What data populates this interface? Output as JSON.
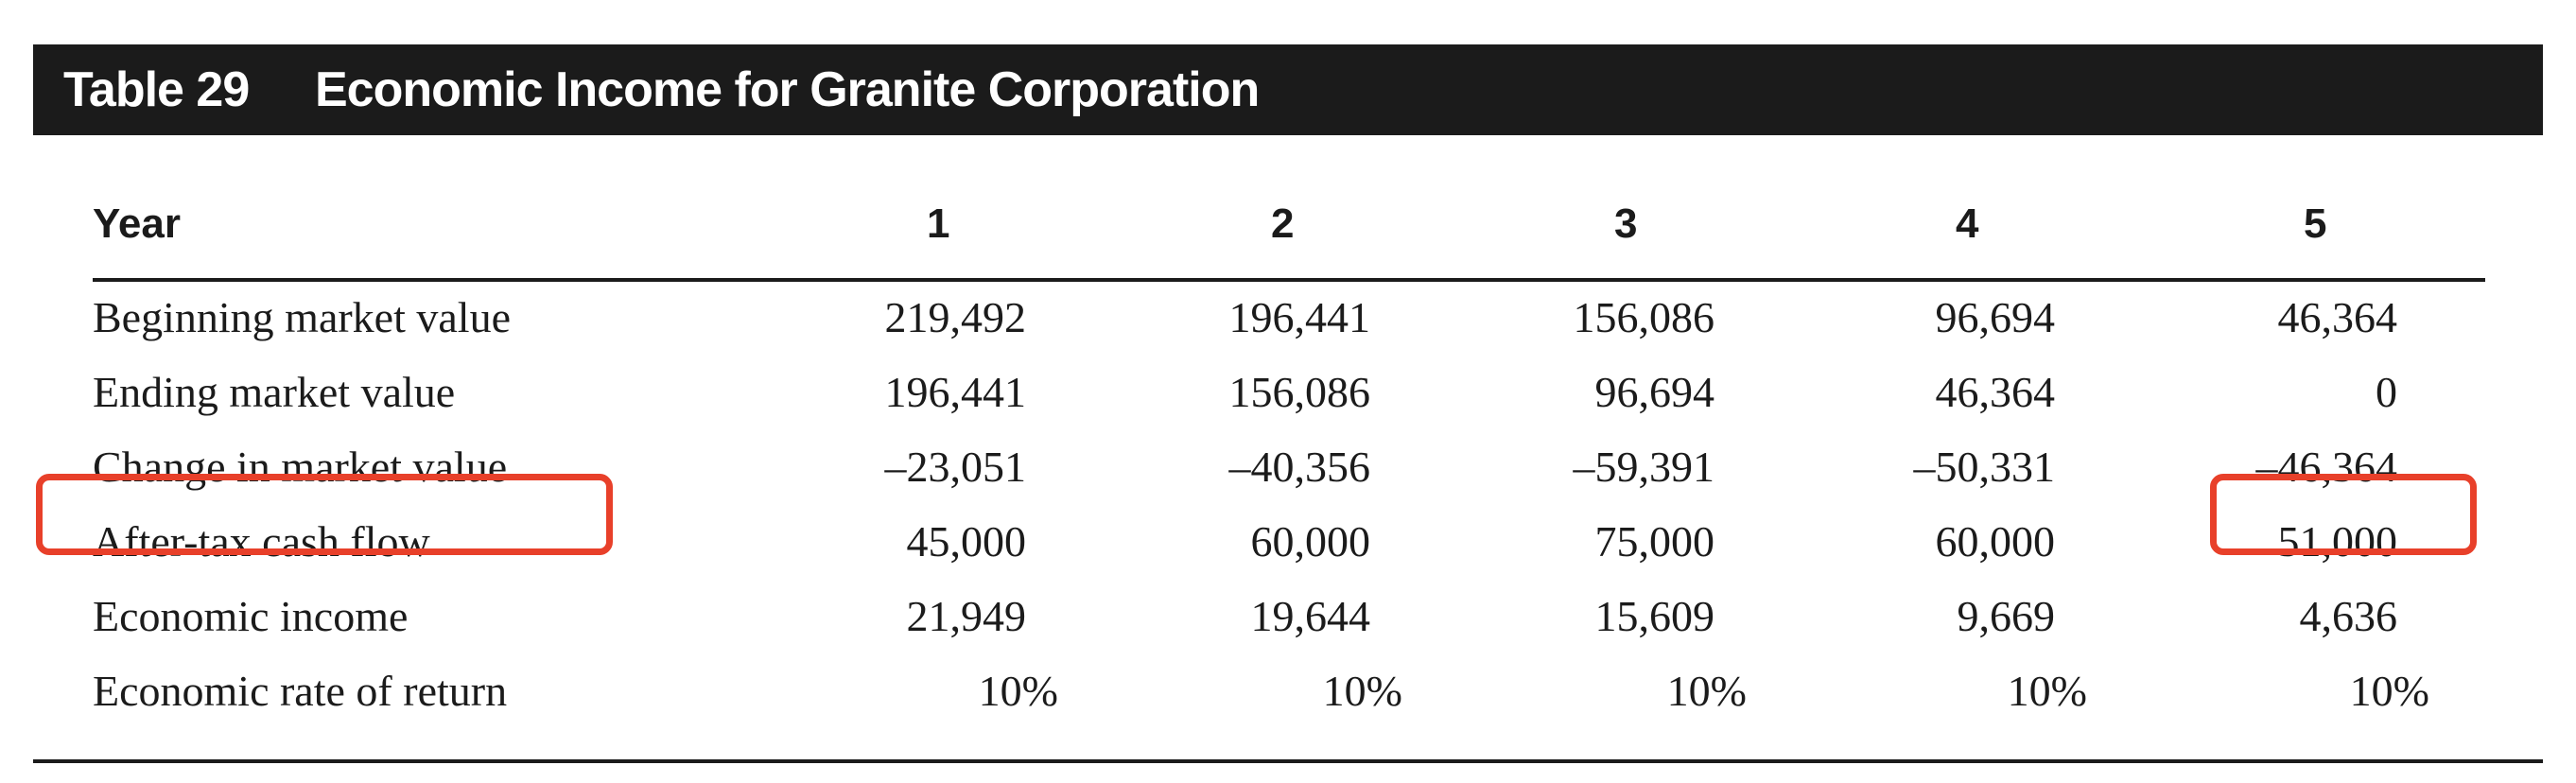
{
  "table": {
    "label": "Table 29",
    "title": "Economic Income for Granite Corporation",
    "year_header": "Year",
    "years": [
      "1",
      "2",
      "3",
      "4",
      "5"
    ],
    "rows": [
      {
        "label": "Beginning market value",
        "values": [
          "219,492",
          "196,441",
          "156,086",
          "96,694",
          "46,364"
        ]
      },
      {
        "label": "Ending market value",
        "values": [
          "196,441",
          "156,086",
          "96,694",
          "46,364",
          "0"
        ]
      },
      {
        "label": "Change in market value",
        "values": [
          "–23,051",
          "–40,356",
          "–59,391",
          "–50,331",
          "–46,364"
        ]
      },
      {
        "label": "After-tax cash flow",
        "values": [
          "45,000",
          "60,000",
          "75,000",
          "60,000",
          "51,000"
        ]
      },
      {
        "label": "Economic income",
        "values": [
          "21,949",
          "19,644",
          "15,609",
          "9,669",
          "4,636"
        ]
      },
      {
        "label": "Economic rate of return",
        "values": [
          "10%",
          "10%",
          "10%",
          "10%",
          "10%"
        ]
      }
    ],
    "highlight_color": "#e8402a",
    "title_bar_color": "#1b1b1b"
  }
}
